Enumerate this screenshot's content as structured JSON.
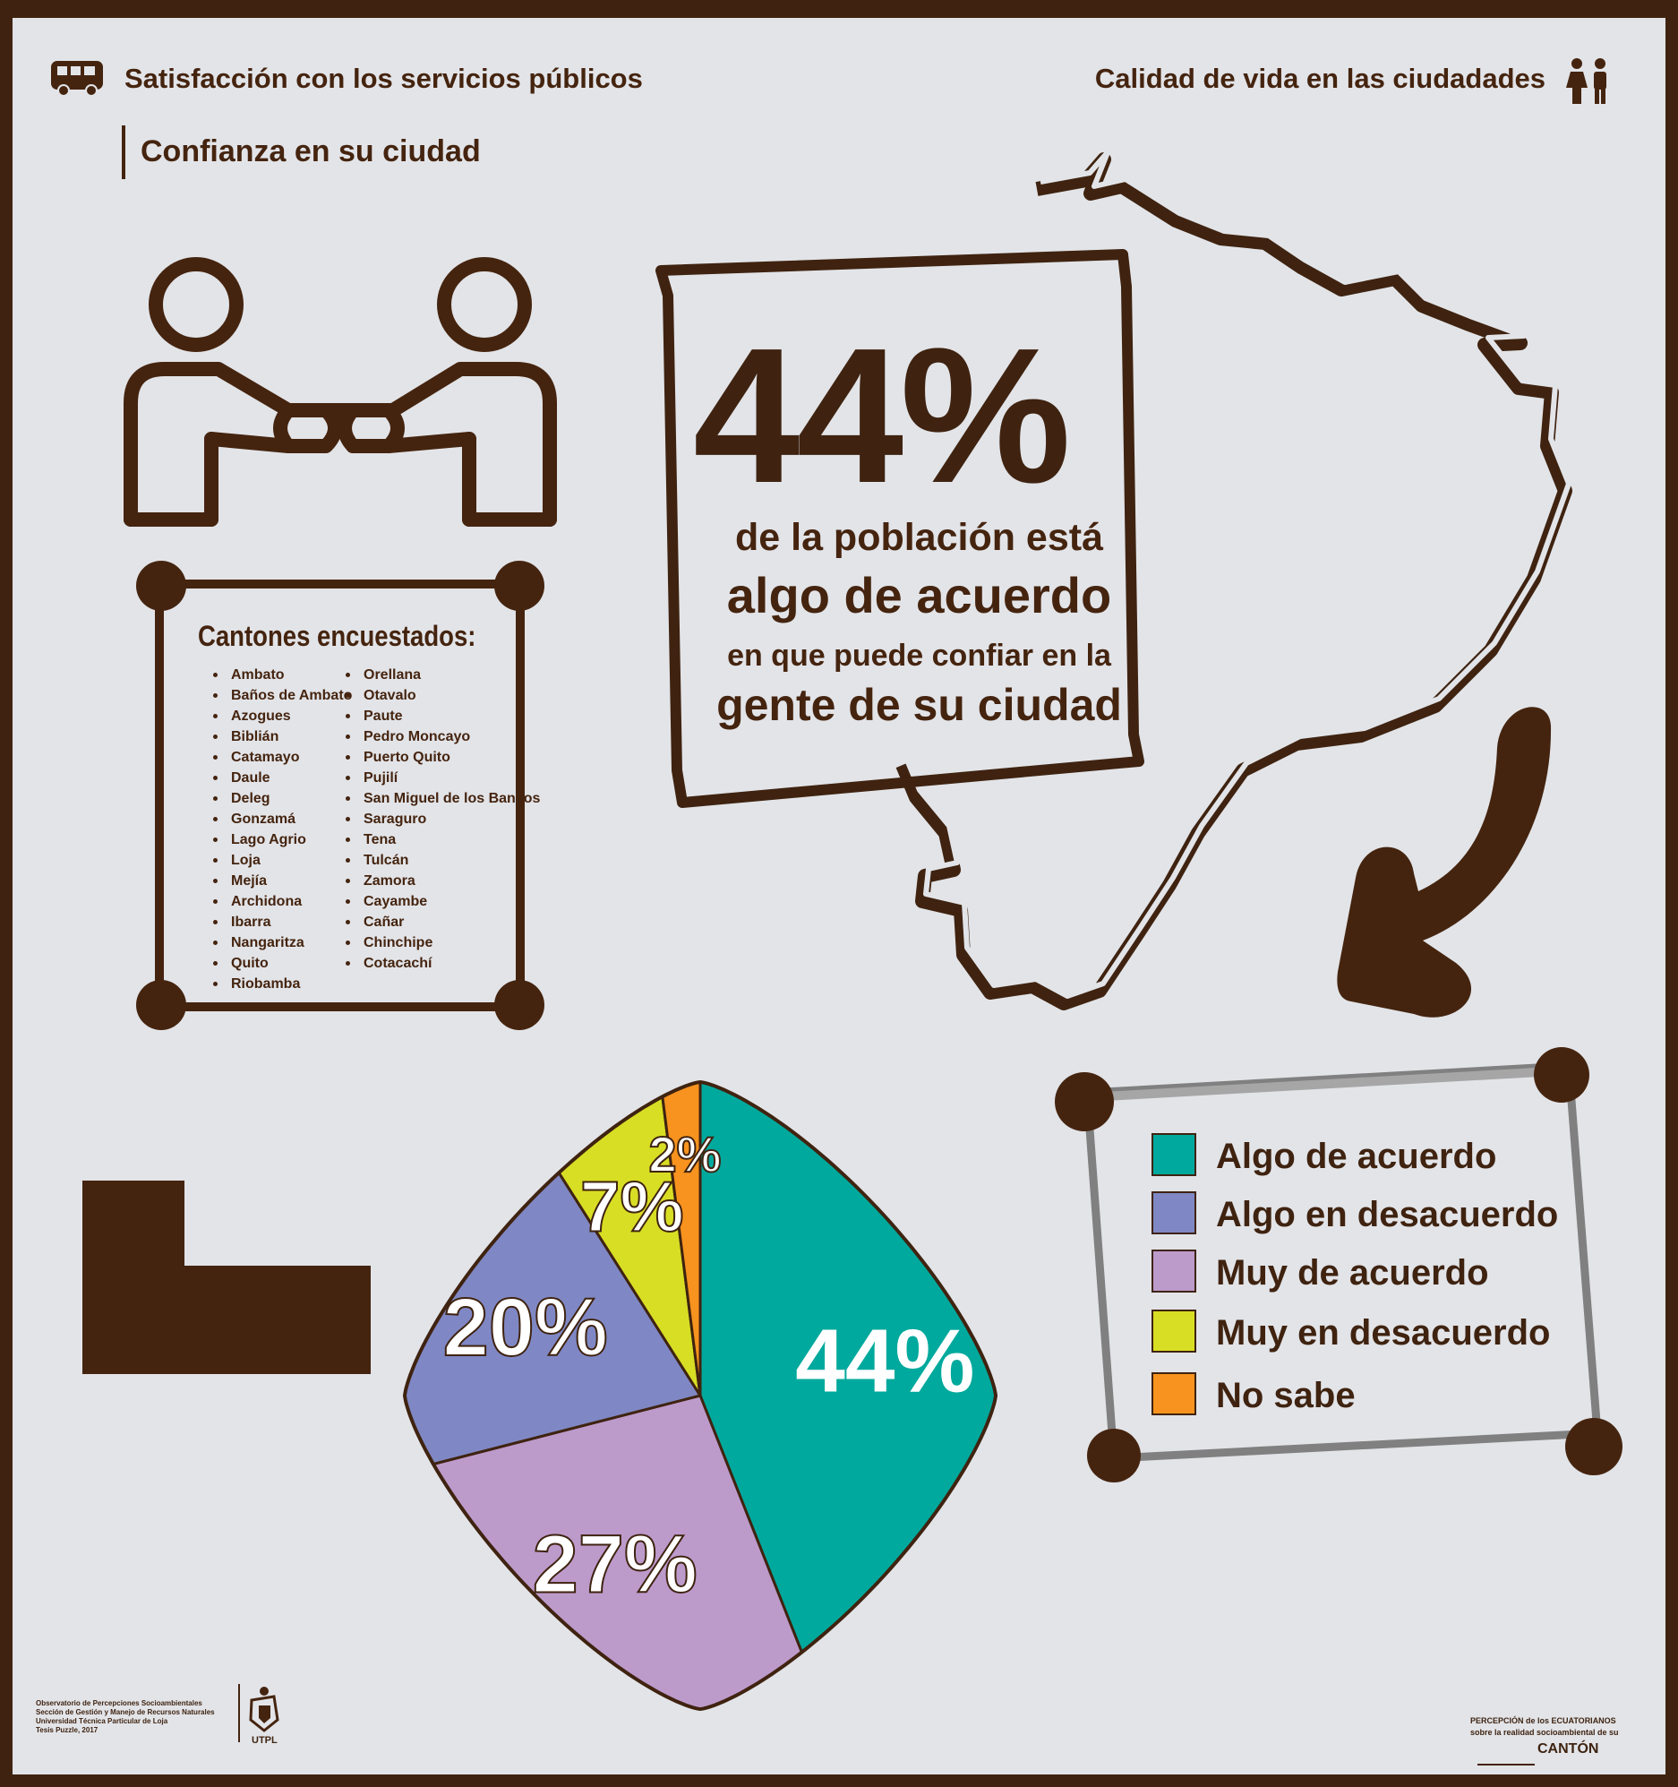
{
  "header": {
    "left_title": "Satisfacción con los servicios públicos",
    "right_title": "Calidad de vida en las ciudadades",
    "section_title": "Confianza en su ciudad",
    "left_icon": "bus-icon",
    "right_icon": "people-icon"
  },
  "highlight": {
    "value": "44%",
    "line1": "de la población está",
    "line2": "algo de acuerdo",
    "line3": "en que puede confiar en la",
    "line4": "gente de su ciudad"
  },
  "cantones": {
    "title": "Cantones encuestados:",
    "column1": [
      "Ambato",
      "Baños de Ambato",
      "Azogues",
      "Biblián",
      "Catamayo",
      "Daule",
      "Deleg",
      "Gonzamá",
      "Lago Agrio",
      "Loja",
      "Mejía",
      "Archidona",
      "Ibarra",
      "Nangaritza",
      "Quito",
      "Riobamba"
    ],
    "column2": [
      "Orellana",
      "Otavalo",
      "Paute",
      "Pedro Moncayo",
      "Puerto Quito",
      "Pujilí",
      "San Miguel de los Bancos",
      "Saraguro",
      "Tena",
      "Tulcán",
      "Zamora",
      "Cayambe",
      "Cañar",
      "Chinchipe",
      "Cotacachí"
    ]
  },
  "chart_data": {
    "type": "pie",
    "categories": [
      "Algo de acuerdo",
      "Algo en desacuerdo",
      "Muy de acuerdo",
      "Muy en desacuerdo",
      "No sabe"
    ],
    "values": [
      44,
      20,
      27,
      7,
      2
    ],
    "data_labels": [
      "44%",
      "20%",
      "27%",
      "7%",
      "2%"
    ],
    "colors": [
      "#00a99d",
      "#7f88c4",
      "#bc9bcb",
      "#d8de24",
      "#f7931e"
    ],
    "legend_position": "right"
  },
  "footer": {
    "credits": [
      "Observatorio de Percepciones Socioambientales",
      "Sección de Gestión y Manejo de Recursos Naturales",
      "Universidad Técnica Particular de Loja",
      "Tesis Puzzle, 2017"
    ],
    "logo_text": "UTPL",
    "brand_line1": "PERCEPCIÓN de los ECUATORIANOS",
    "brand_line2": "sobre la realidad socioambiental de su",
    "brand_line3": "CANTÓN"
  },
  "colors": {
    "brown": "#45240f",
    "background": "#e2e4e8"
  }
}
